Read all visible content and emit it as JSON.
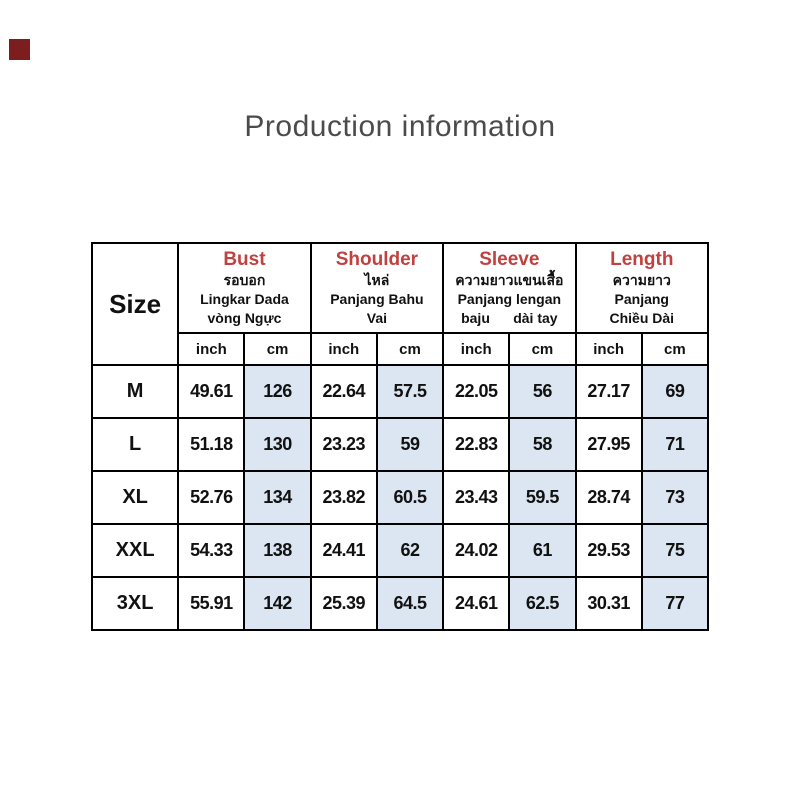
{
  "page": {
    "title": "Production information"
  },
  "colors": {
    "accent_red": "#c0413f",
    "cm_column_blue": "#dce6f2",
    "corner_square_maroon": "#7d1e1e",
    "border_black": "#000000",
    "title_gray": "#4b4b4b"
  },
  "table": {
    "size_header": "Size",
    "groups": [
      {
        "label": "Bust",
        "lines": [
          "รอบอก",
          "Lingkar Dada",
          "vòng Ngực"
        ]
      },
      {
        "label": "Shoulder",
        "lines": [
          "ไหล่",
          "Panjang Bahu",
          "Vai"
        ]
      },
      {
        "label": "Sleeve",
        "lines": [
          "ความยาวแขนเสื้อ",
          "Panjang lengan",
          "baju      dài tay"
        ]
      },
      {
        "label": "Length",
        "lines": [
          "ความยาว",
          "Panjang",
          "Chiều Dài"
        ]
      }
    ],
    "unit_headers": [
      "inch",
      "cm",
      "inch",
      "cm",
      "inch",
      "cm",
      "inch",
      "cm"
    ],
    "rows": [
      {
        "size": "M",
        "values": [
          "49.61",
          "126",
          "22.64",
          "57.5",
          "22.05",
          "56",
          "27.17",
          "69"
        ]
      },
      {
        "size": "L",
        "values": [
          "51.18",
          "130",
          "23.23",
          "59",
          "22.83",
          "58",
          "27.95",
          "71"
        ]
      },
      {
        "size": "XL",
        "values": [
          "52.76",
          "134",
          "23.82",
          "60.5",
          "23.43",
          "59.5",
          "28.74",
          "73"
        ]
      },
      {
        "size": "XXL",
        "values": [
          "54.33",
          "138",
          "24.41",
          "62",
          "24.02",
          "61",
          "29.53",
          "75"
        ]
      },
      {
        "size": "3XL",
        "values": [
          "55.91",
          "142",
          "25.39",
          "64.5",
          "24.61",
          "62.5",
          "30.31",
          "77"
        ]
      }
    ]
  }
}
